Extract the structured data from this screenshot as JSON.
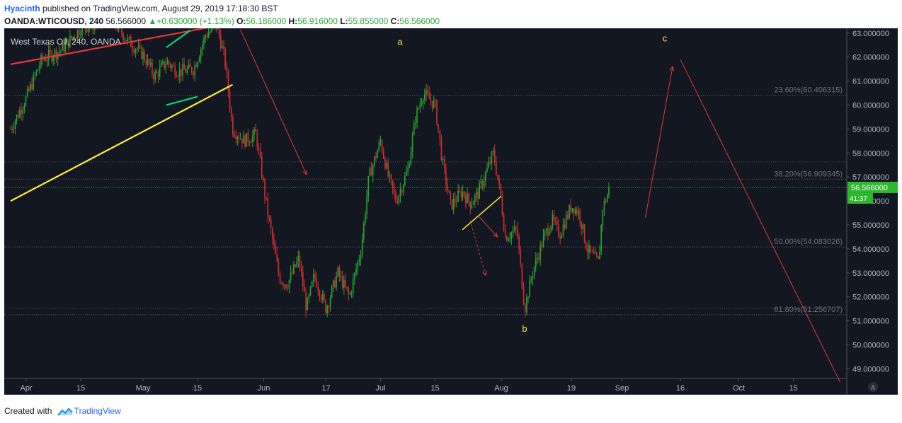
{
  "header": {
    "author": "Hyacinth",
    "published": "published on TradingView.com, August 29, 2019 17:18:30 BST",
    "symbol": "OANDA:WTICOUSD, 240",
    "last": "56.566000",
    "change_arrow": "▲",
    "change": "+0.630000 (+1.13%)",
    "o_label": "O:",
    "o": "56.186000",
    "h_label": "H:",
    "h": "56.916000",
    "l_label": "L:",
    "l": "55.855000",
    "c_label": "C:",
    "c": "56.566000"
  },
  "legend": "West Texas Oil, 240, OANDA",
  "annotations": {
    "a": "a",
    "b": "b",
    "c": "c"
  },
  "fib_levels": [
    {
      "label": "23.60%(60.406315)",
      "value": 60.406315
    },
    {
      "label": "38.20%(56.909345)",
      "value": 56.909345
    },
    {
      "label": "50.00%(54.083026)",
      "value": 54.083026
    },
    {
      "label": "61.80%(51.256707)",
      "value": 51.256707
    }
  ],
  "price_badge": "56.566000",
  "countdown_badge": "41:37",
  "auto_scale_label": "A",
  "footer": {
    "created_with": "Created with",
    "brand": "TradingView"
  },
  "colors": {
    "background": "#131722",
    "up": "#26a633",
    "down": "#d32f2f",
    "trend": "#ffeb3b",
    "badge": "#2eb82e"
  },
  "icons": [
    "tradingview-logo-icon"
  ],
  "chart_data": {
    "type": "candlestick",
    "title": "West Texas Oil, 240, OANDA",
    "interval": "4H",
    "y_axis": {
      "range": [
        48.6,
        63.2
      ],
      "ticks": [
        "63.000000",
        "62.000000",
        "61.000000",
        "60.000000",
        "59.000000",
        "58.000000",
        "57.000000",
        "56.000000",
        "55.000000",
        "54.000000",
        "53.000000",
        "52.000000",
        "51.000000",
        "50.000000",
        "49.000000"
      ]
    },
    "x_axis": {
      "ticks": [
        "Apr",
        "15",
        "May",
        "15",
        "Jun",
        "17",
        "Jul",
        "15",
        "Aug",
        "19",
        "Sep",
        "16",
        "Oct",
        "15"
      ],
      "tick_dates": [
        "2019-04-01",
        "2019-04-15",
        "2019-05-01",
        "2019-05-15",
        "2019-06-01",
        "2019-06-17",
        "2019-07-01",
        "2019-07-15",
        "2019-08-01",
        "2019-08-19",
        "2019-09-01",
        "2019-09-16",
        "2019-10-01",
        "2019-10-15"
      ]
    },
    "price_path": [
      [
        "2019-03-28",
        59.0
      ],
      [
        "2019-04-01",
        60.3
      ],
      [
        "2019-04-05",
        61.9
      ],
      [
        "2019-04-10",
        62.3
      ],
      [
        "2019-04-15",
        63.2
      ],
      [
        "2019-04-23",
        63.6
      ],
      [
        "2019-04-27",
        62.7
      ],
      [
        "2019-05-01",
        62.1
      ],
      [
        "2019-05-04",
        61.2
      ],
      [
        "2019-05-07",
        61.8
      ],
      [
        "2019-05-10",
        61.4
      ],
      [
        "2019-05-14",
        61.5
      ],
      [
        "2019-05-17",
        62.9
      ],
      [
        "2019-05-20",
        63.3
      ],
      [
        "2019-05-22",
        61.9
      ],
      [
        "2019-05-24",
        59.0
      ],
      [
        "2019-05-27",
        58.5
      ],
      [
        "2019-05-30",
        58.8
      ],
      [
        "2019-06-02",
        55.5
      ],
      [
        "2019-06-05",
        52.8
      ],
      [
        "2019-06-07",
        52.5
      ],
      [
        "2019-06-10",
        53.6
      ],
      [
        "2019-06-12",
        51.5
      ],
      [
        "2019-06-14",
        52.9
      ],
      [
        "2019-06-17",
        51.5
      ],
      [
        "2019-06-20",
        53.0
      ],
      [
        "2019-06-23",
        52.0
      ],
      [
        "2019-06-26",
        54.0
      ],
      [
        "2019-06-28",
        57.0
      ],
      [
        "2019-07-01",
        58.5
      ],
      [
        "2019-07-03",
        57.0
      ],
      [
        "2019-07-05",
        56.0
      ],
      [
        "2019-07-08",
        57.3
      ],
      [
        "2019-07-10",
        59.5
      ],
      [
        "2019-07-12",
        60.5
      ],
      [
        "2019-07-15",
        60.0
      ],
      [
        "2019-07-17",
        57.5
      ],
      [
        "2019-07-19",
        55.8
      ],
      [
        "2019-07-22",
        56.4
      ],
      [
        "2019-07-24",
        55.9
      ],
      [
        "2019-07-26",
        56.3
      ],
      [
        "2019-07-30",
        58.0
      ],
      [
        "2019-08-01",
        56.0
      ],
      [
        "2019-08-02",
        54.5
      ],
      [
        "2019-08-05",
        54.8
      ],
      [
        "2019-08-07",
        51.5
      ],
      [
        "2019-08-09",
        53.0
      ],
      [
        "2019-08-12",
        54.5
      ],
      [
        "2019-08-14",
        55.2
      ],
      [
        "2019-08-16",
        54.6
      ],
      [
        "2019-08-19",
        55.8
      ],
      [
        "2019-08-21",
        55.5
      ],
      [
        "2019-08-23",
        54.0
      ],
      [
        "2019-08-26",
        53.4
      ],
      [
        "2019-08-27",
        55.7
      ],
      [
        "2019-08-29",
        56.57
      ]
    ],
    "last_close": 56.566
  }
}
